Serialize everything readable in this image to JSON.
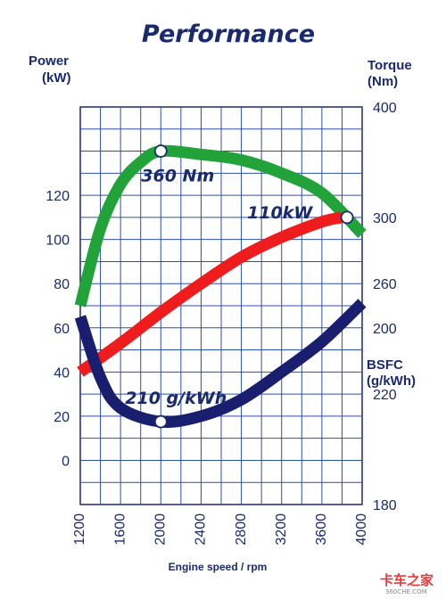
{
  "chart_data": {
    "type": "line",
    "title": "Performance",
    "xlabel": "Engine speed / rpm",
    "x_ticks": [
      "1200",
      "1600",
      "2000",
      "2400",
      "2800",
      "3200",
      "3600",
      "4000"
    ],
    "xlim": [
      1200,
      4000
    ],
    "grid": true,
    "axes": {
      "power": {
        "title_line1": "Power",
        "title_line2": "(kW)",
        "ticks": [
          "0",
          "20",
          "40",
          "60",
          "80",
          "100",
          "120"
        ],
        "range": [
          -20,
          160
        ]
      },
      "torque": {
        "title_line1": "Torque",
        "title_line2": "(Nm)",
        "ticks": [
          "200",
          "300",
          "400"
        ],
        "range": [
          40,
          400
        ]
      },
      "bsfc": {
        "title_line1": "BSFC",
        "title_line2": "(g/kWh)",
        "ticks": [
          "180",
          "220",
          "260"
        ],
        "range": [
          180,
          324
        ]
      }
    },
    "series": [
      {
        "axis": "torque",
        "color": "#22a33a",
        "points": [
          [
            1200,
            220
          ],
          [
            1400,
            290
          ],
          [
            1600,
            330
          ],
          [
            1800,
            350
          ],
          [
            2000,
            360
          ],
          [
            2400,
            357
          ],
          [
            2800,
            352
          ],
          [
            3200,
            340
          ],
          [
            3600,
            322
          ],
          [
            4000,
            285
          ]
        ]
      },
      {
        "axis": "power",
        "color": "#ee1c1c",
        "points": [
          [
            1200,
            40
          ],
          [
            1600,
            53
          ],
          [
            2000,
            67
          ],
          [
            2400,
            80
          ],
          [
            2800,
            92
          ],
          [
            3200,
            101
          ],
          [
            3600,
            108
          ],
          [
            3800,
            110
          ]
        ]
      },
      {
        "axis": "bsfc",
        "color": "#1a1e6e",
        "points": [
          [
            1200,
            248
          ],
          [
            1400,
            226
          ],
          [
            1600,
            215
          ],
          [
            2000,
            210
          ],
          [
            2400,
            212
          ],
          [
            2800,
            218
          ],
          [
            3200,
            228
          ],
          [
            3600,
            239
          ],
          [
            4000,
            253
          ]
        ]
      }
    ],
    "annotations": [
      {
        "text": "360 Nm",
        "marker": [
          2000,
          360
        ],
        "axis": "torque"
      },
      {
        "text": "110kW",
        "marker": [
          3850,
          110
        ],
        "axis": "power"
      },
      {
        "text": "210 g/kWh",
        "marker": [
          2000,
          210
        ],
        "axis": "bsfc"
      }
    ]
  },
  "watermark": {
    "text": "卡车之家",
    "subtext": "360CHE.COM"
  }
}
